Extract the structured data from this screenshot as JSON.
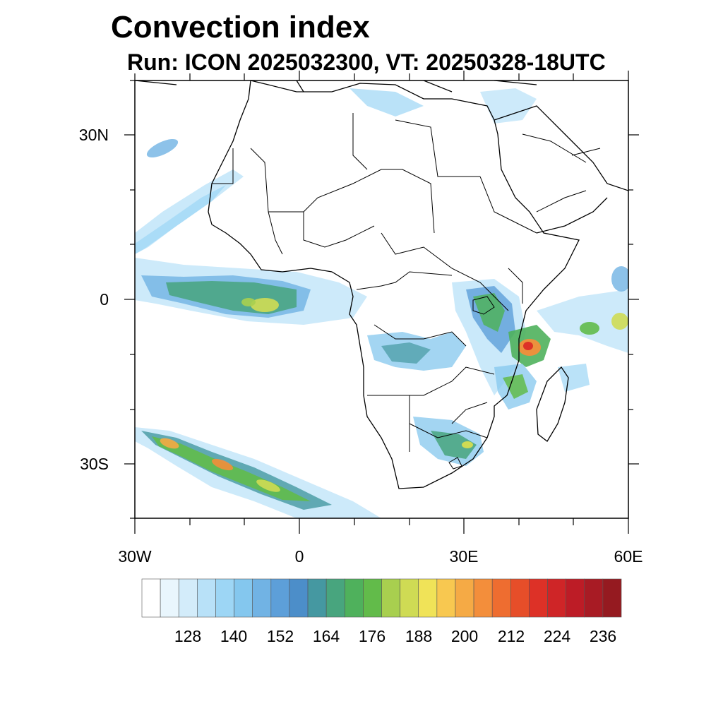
{
  "title": "Convection index",
  "subtitle": "Run: ICON 2025032300,  VT: 20250328-18UTC",
  "axes": {
    "y_labels": [
      "30N",
      "0",
      "30S"
    ],
    "x_labels": [
      "30W",
      "0",
      "30E",
      "60E"
    ]
  },
  "colorbar": {
    "colors": [
      "#ffffff",
      "#e9f6fd",
      "#d3ecfa",
      "#b8e1f8",
      "#9dd6f5",
      "#84c7ee",
      "#71b3e4",
      "#5d9fd9",
      "#4c8ec9",
      "#4598a1",
      "#48a57e",
      "#4fb15c",
      "#62bb4a",
      "#a8cf4f",
      "#cfdb54",
      "#f0e358",
      "#f8c850",
      "#f5aa45",
      "#f38e3b",
      "#ee6d30",
      "#e64e29",
      "#dd3127",
      "#cf2527",
      "#bd1c26",
      "#a81b24",
      "#951a20"
    ],
    "labels": [
      "128",
      "140",
      "152",
      "164",
      "176",
      "188",
      "200",
      "212",
      "224",
      "236"
    ]
  }
}
